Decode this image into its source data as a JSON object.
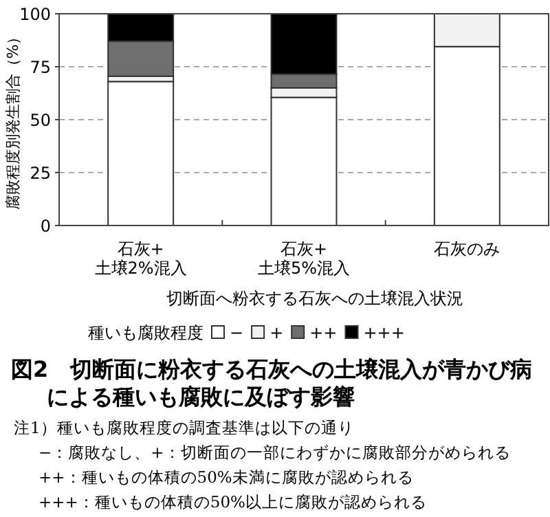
{
  "chart_data": {
    "type": "bar",
    "stacked": true,
    "title": "図2　切断面に粉衣する石灰への土壌混入が青かび病による種いも腐敗に及ぼす影響",
    "xlabel": "切断面へ粉衣する石灰への土壌混入状況",
    "ylabel": "腐敗程度別発生割合（%）",
    "legend_title": "種いも腐敗程度",
    "categories": [
      "石灰+\n土壌2%混入",
      "石灰+\n土壌5%混入",
      "石灰のみ"
    ],
    "series": [
      {
        "name": "−",
        "color": "#ffffff",
        "values": [
          68,
          60.5,
          84.5
        ]
      },
      {
        "name": "+",
        "color": "#f2f2f2",
        "values": [
          2.5,
          4.5,
          15.5
        ]
      },
      {
        "name": "++",
        "color": "#6e6e6e",
        "values": [
          16.5,
          6.5,
          0
        ]
      },
      {
        "name": "+++",
        "color": "#000000",
        "values": [
          13,
          28.5,
          0
        ]
      }
    ],
    "ylim": [
      0,
      100
    ],
    "yticks": [
      0,
      25,
      50,
      75,
      100
    ],
    "grid": "y",
    "legend": "bottom",
    "annotations": [
      "注1）種いも腐敗程度の調査基準は以下の通り",
      "−：腐敗なし、+：切断面の一部にわずかに腐敗部分がめられる",
      "++：種いもの体積の50%未満に腐敗が認められる",
      "+++：種いもの体積の50%以上に腐敗が認められる"
    ]
  }
}
